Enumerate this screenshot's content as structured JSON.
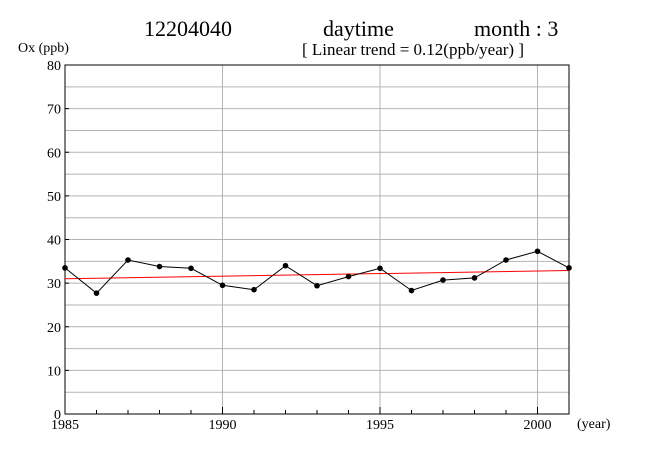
{
  "header": {
    "station": "12204040",
    "period": "daytime",
    "month": "month : 3",
    "trend": "[ Linear trend = 0.12(ppb/year) ]"
  },
  "chart_data": {
    "type": "line",
    "ylabel": "Ox (ppb)",
    "xlabel": "(year)",
    "xlim": [
      1985,
      2001
    ],
    "ylim": [
      0,
      80
    ],
    "x_ticks": [
      1985,
      1990,
      1995,
      2000
    ],
    "y_ticks": [
      0,
      10,
      20,
      30,
      40,
      50,
      60,
      70,
      80
    ],
    "grid": true,
    "x": [
      1985,
      1986,
      1987,
      1988,
      1989,
      1990,
      1991,
      1992,
      1993,
      1994,
      1995,
      1996,
      1997,
      1998,
      1999,
      2000,
      2001
    ],
    "series": [
      {
        "values": [
          33.5,
          27.7,
          35.3,
          33.8,
          33.4,
          29.5,
          28.5,
          34.0,
          29.4,
          31.5,
          33.4,
          28.3,
          30.7,
          31.2,
          35.3,
          37.3,
          33.5
        ],
        "color": "#000000"
      }
    ],
    "trend_line": {
      "x": [
        1985,
        2001
      ],
      "y": [
        31.0,
        32.9
      ],
      "slope": 0.12,
      "color": "#ff0000"
    }
  }
}
